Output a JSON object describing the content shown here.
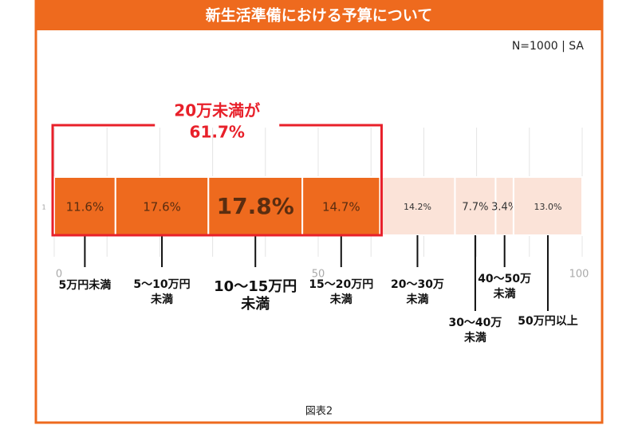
{
  "chart_data": {
    "type": "stacked-bar-horizontal",
    "title": "新生活準備における予算について",
    "subtitle": "N=1000 | SA",
    "caption": "図表2",
    "categories": [
      "1"
    ],
    "xlim": [
      0,
      100
    ],
    "xticks": [
      0,
      50,
      100
    ],
    "xgridticks": [
      10,
      20,
      30,
      40,
      60,
      70,
      80,
      90
    ],
    "grid": true,
    "annotation": {
      "lines": [
        "20万未満が",
        "61.7%"
      ],
      "color": "#e8202a",
      "span": [
        0,
        3
      ]
    },
    "series": [
      {
        "name": [
          "5万円未満"
        ],
        "values": [
          11.6
        ],
        "value_labels": [
          "11.6%"
        ],
        "color": "#ee6a1e"
      },
      {
        "name": [
          "5〜10万円",
          "未満"
        ],
        "values": [
          17.6
        ],
        "value_labels": [
          "17.6%"
        ],
        "color": "#ee6a1e"
      },
      {
        "name": [
          "10〜15万円",
          "未満"
        ],
        "values": [
          17.8
        ],
        "value_labels": [
          "17.8%"
        ],
        "color": "#ee6a1e",
        "emphasis": true
      },
      {
        "name": [
          "15〜20万円",
          "未満"
        ],
        "values": [
          14.7
        ],
        "value_labels": [
          "14.7%"
        ],
        "color": "#ee6a1e"
      },
      {
        "name": [
          "20〜30万",
          "未満"
        ],
        "values": [
          14.2
        ],
        "value_labels": [
          "14.2%"
        ],
        "color": "#fbe3d8"
      },
      {
        "name": [
          "30〜40万",
          "未満"
        ],
        "values": [
          7.7
        ],
        "value_labels": [
          "7.7%"
        ],
        "color": "#fbe3d8"
      },
      {
        "name": [
          "40〜50万",
          "未満"
        ],
        "values": [
          3.4
        ],
        "value_labels": [
          "3.4%"
        ],
        "color": "#fbe3d8"
      },
      {
        "name": [
          "50万円以上"
        ],
        "values": [
          13.0
        ],
        "value_labels": [
          "13.0%"
        ],
        "color": "#fbe3d8"
      }
    ]
  }
}
